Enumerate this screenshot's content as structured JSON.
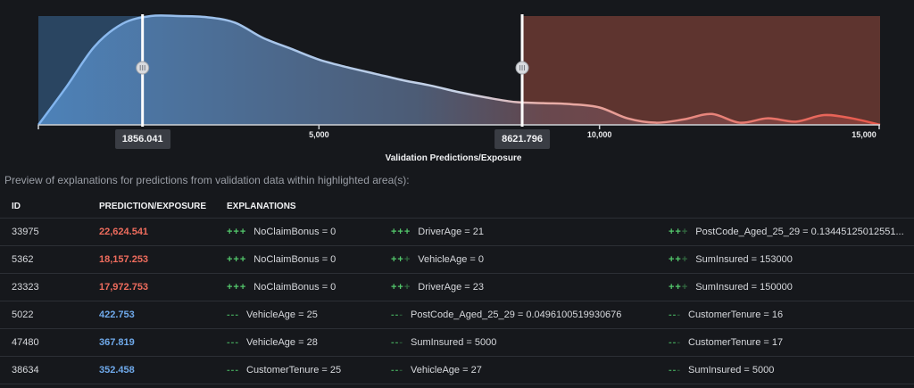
{
  "chart": {
    "handles": [
      {
        "label": "1856.041",
        "value": 1856.041
      },
      {
        "label": "8621.796",
        "value": 8621.796
      }
    ],
    "axis_title": "Validation Predictions/Exposure",
    "ticks": [
      {
        "label": "5,000",
        "value": 5000
      },
      {
        "label": "10,000",
        "value": 10000
      },
      {
        "label": "15,000",
        "value": 15000
      }
    ],
    "colors": {
      "low": "#6fa9ea",
      "high": "#ee6c5d",
      "handle": "#ffffff"
    }
  },
  "chart_data": {
    "type": "area",
    "title": "",
    "xlabel": "Validation Predictions/Exposure",
    "ylabel": "",
    "xlim": [
      0,
      15000
    ],
    "ylim": [
      0,
      1
    ],
    "x": [
      0,
      500,
      1000,
      1500,
      2000,
      2500,
      3000,
      3500,
      4000,
      4500,
      5000,
      5500,
      6000,
      6500,
      7000,
      7500,
      8000,
      8500,
      9000,
      9500,
      10000,
      10500,
      11000,
      11500,
      12000,
      12500,
      13000,
      13500,
      14000,
      14500,
      15000
    ],
    "values": [
      0.0,
      0.35,
      0.72,
      0.93,
      1.0,
      1.0,
      0.99,
      0.94,
      0.8,
      0.7,
      0.6,
      0.53,
      0.47,
      0.41,
      0.36,
      0.3,
      0.25,
      0.21,
      0.2,
      0.19,
      0.16,
      0.06,
      0.02,
      0.05,
      0.1,
      0.02,
      0.06,
      0.03,
      0.09,
      0.06,
      0.0
    ]
  },
  "preview": {
    "caption": "Preview of explanations for predictions from validation data within highlighted area(s):"
  },
  "table": {
    "headers": {
      "id": "ID",
      "prediction": "PREDICTION/EXPOSURE",
      "explanations": "EXPLANATIONS"
    },
    "rows": [
      {
        "id": "33975",
        "prediction": "22,624.541",
        "level": "high",
        "e1": {
          "sign": "+++",
          "text": "NoClaimBonus = 0"
        },
        "e2": {
          "sign": "+++",
          "text": "DriverAge = 21"
        },
        "e3": {
          "sign": "++",
          "text": "PostCode_Aged_25_29 = 0.13445125012551..."
        }
      },
      {
        "id": "5362",
        "prediction": "18,157.253",
        "level": "high",
        "e1": {
          "sign": "+++",
          "text": "NoClaimBonus = 0"
        },
        "e2": {
          "sign": "++",
          "text": "VehicleAge = 0"
        },
        "e3": {
          "sign": "++",
          "text": "SumInsured = 153000"
        }
      },
      {
        "id": "23323",
        "prediction": "17,972.753",
        "level": "high",
        "e1": {
          "sign": "+++",
          "text": "NoClaimBonus = 0"
        },
        "e2": {
          "sign": "++",
          "text": "DriverAge = 23"
        },
        "e3": {
          "sign": "++",
          "text": "SumInsured = 150000"
        }
      },
      {
        "id": "5022",
        "prediction": "422.753",
        "level": "low",
        "e1": {
          "sign": "---",
          "text": "VehicleAge = 25"
        },
        "e2": {
          "sign": "--",
          "text": "PostCode_Aged_25_29 = 0.0496100519930676"
        },
        "e3": {
          "sign": "--",
          "text": "CustomerTenure = 16"
        }
      },
      {
        "id": "47480",
        "prediction": "367.819",
        "level": "low",
        "e1": {
          "sign": "---",
          "text": "VehicleAge = 28"
        },
        "e2": {
          "sign": "--",
          "text": "SumInsured = 5000"
        },
        "e3": {
          "sign": "--",
          "text": "CustomerTenure = 17"
        }
      },
      {
        "id": "38634",
        "prediction": "352.458",
        "level": "low",
        "e1": {
          "sign": "---",
          "text": "CustomerTenure = 25"
        },
        "e2": {
          "sign": "--",
          "text": "VehicleAge = 27"
        },
        "e3": {
          "sign": "--",
          "text": "SumInsured = 5000"
        }
      }
    ]
  }
}
